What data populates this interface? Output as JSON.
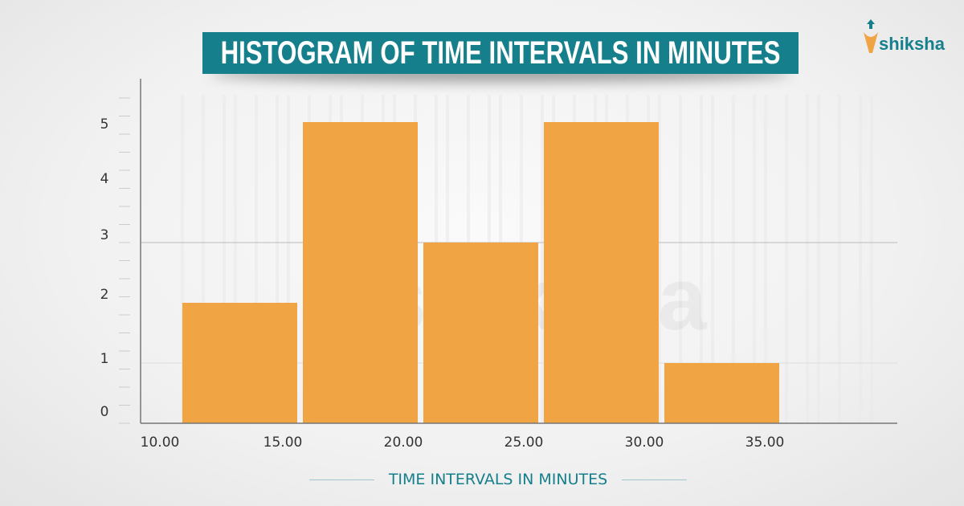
{
  "brand": {
    "name": "shiksha",
    "color": "#167f8c"
  },
  "chart_data": {
    "type": "bar",
    "title": "HISTOGRAM OF TIME INTERVALS IN MINUTES",
    "xlabel": "TIME INTERVALS IN MINUTES",
    "ylabel": "",
    "x_tick_labels": [
      "10.00",
      "15.00",
      "20.00",
      "25.00",
      "30.00",
      "35.00"
    ],
    "y_tick_labels": [
      "0",
      "1",
      "2",
      "3",
      "4",
      "5"
    ],
    "categories": [
      "10-15",
      "15-20",
      "20-25",
      "25-30",
      "30-35"
    ],
    "values": [
      2,
      5,
      3,
      5,
      1
    ],
    "ylim": [
      0,
      5.5
    ],
    "bar_color": "#f0a443",
    "title_bg_color": "#167f8c",
    "grid": true
  }
}
